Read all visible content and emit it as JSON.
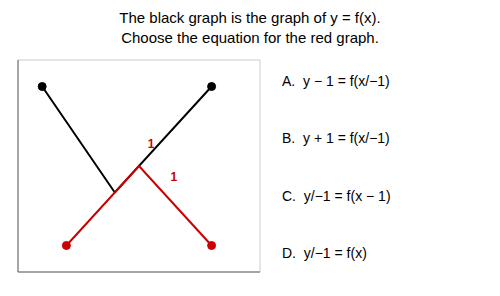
{
  "chart_data": {
    "type": "line",
    "title": "The black graph is the graph of y = f(x).",
    "subtitle": "Choose the equation for the red graph.",
    "series": [
      {
        "color": "#000000",
        "x": [
          -4,
          -1,
          3
        ],
        "values": [
          3,
          -1,
          3
        ],
        "marker": "endpoints"
      },
      {
        "color": "#cc0000",
        "x": [
          -3,
          0,
          3
        ],
        "values": [
          -3,
          0,
          -3
        ],
        "marker": "endpoints"
      }
    ],
    "xlim": [
      -5,
      5
    ],
    "ylim": [
      -4,
      4
    ],
    "xticks": [
      -5,
      -4,
      -3,
      -2,
      -1,
      0,
      1,
      2,
      3,
      4,
      5
    ],
    "yticks": [
      -4,
      -3,
      -2,
      -1,
      0,
      1,
      2,
      3,
      4
    ],
    "grid": true,
    "tick_labels": false,
    "annotations": [
      {
        "text": "1",
        "x": 0.15,
        "y": 0.85,
        "color": "#cc0000"
      },
      {
        "text": "1",
        "x": 1.1,
        "y": -0.4,
        "color": "#cc0000"
      },
      {
        "text": "A.  y − 1 = f(x/−1)"
      },
      {
        "text": "B.  y + 1 = f(x/−1)"
      },
      {
        "text": "C.  y/−1 = f(x − 1)"
      },
      {
        "text": "D.  y/−1 = f(x)"
      }
    ]
  }
}
